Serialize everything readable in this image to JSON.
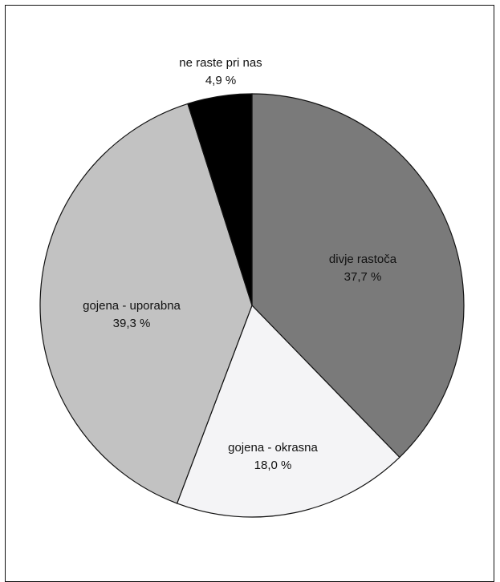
{
  "chart_data": {
    "type": "pie",
    "title": "",
    "start_angle_deg": 0,
    "direction": "clockwise",
    "slices": [
      {
        "label": "divje rastoča",
        "value": 37.7,
        "value_label": "37,7 %",
        "color": "#7a7a7a"
      },
      {
        "label": "gojena - okrasna",
        "value": 18.0,
        "value_label": "18,0 %",
        "color": "#f4f4f6"
      },
      {
        "label": "gojena - uporabna",
        "value": 39.3,
        "value_label": "39,3 %",
        "color": "#c2c2c2"
      },
      {
        "label": "ne raste pri nas",
        "value": 4.9,
        "value_label": "4,9 %",
        "color": "#000000"
      }
    ]
  }
}
